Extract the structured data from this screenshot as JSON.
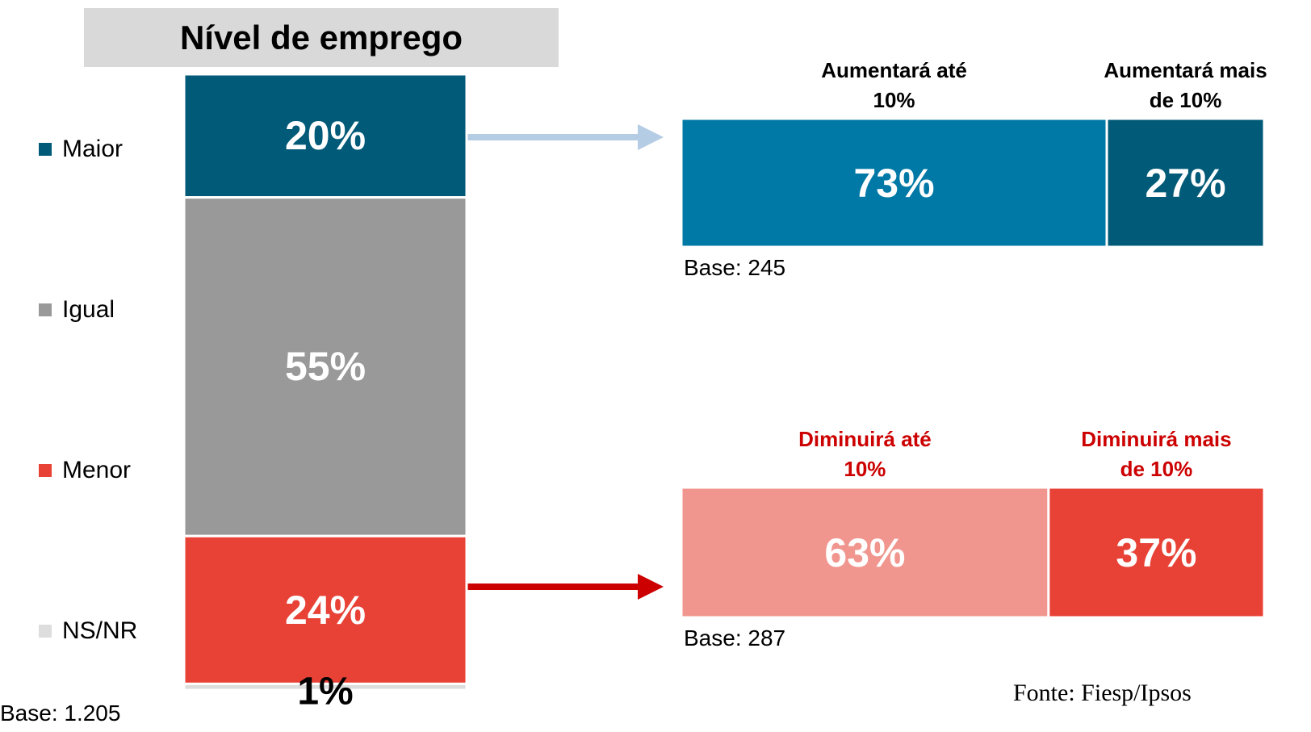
{
  "chart_data": [
    {
      "type": "stacked-bar",
      "title": "Nível de emprego",
      "categories": [
        "Maior",
        "Igual",
        "Menor",
        "NS/NR"
      ],
      "values": [
        20,
        55,
        24,
        1
      ],
      "value_labels": [
        "20%",
        "55%",
        "24%",
        "1%"
      ],
      "colors": [
        "#005a78",
        "#999999",
        "#e84136",
        "#dddddd"
      ],
      "note": "Base: 1.205"
    },
    {
      "type": "horizontal-stacked-bar",
      "series": [
        {
          "name": "Aumentará até 10%",
          "color": "#0079a6",
          "values": [
            73
          ],
          "value_labels": [
            "73%"
          ]
        },
        {
          "name": "Aumentará mais de 10%",
          "color": "#005a78",
          "values": [
            27
          ],
          "value_labels": [
            "27%"
          ]
        }
      ],
      "note": "Base: 245"
    },
    {
      "type": "horizontal-stacked-bar",
      "series": [
        {
          "name": "Diminuirá até 10%",
          "color": "#f0968f",
          "values": [
            63
          ],
          "value_labels": [
            "63%"
          ]
        },
        {
          "name": "Diminuirá mais de 10%",
          "color": "#e84136",
          "values": [
            37
          ],
          "value_labels": [
            "37%"
          ]
        }
      ],
      "note": "Base: 287"
    }
  ],
  "source": "Fonte: Fiesp/Ipsos"
}
